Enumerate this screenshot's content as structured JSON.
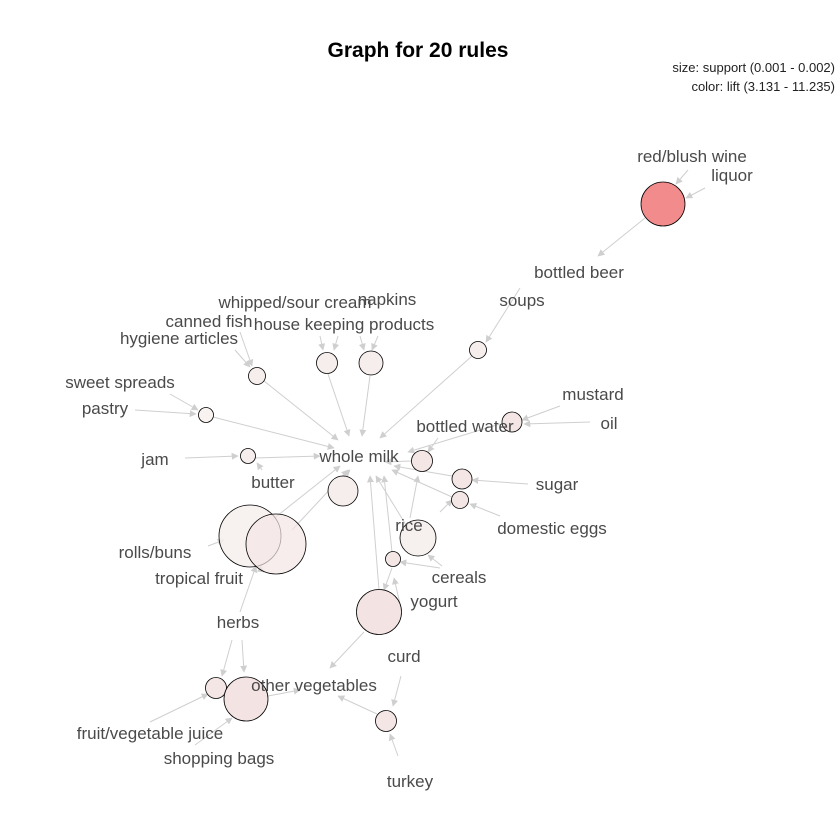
{
  "title": "Graph for 20 rules",
  "legend": {
    "size": "size: support (0.001 - 0.002)",
    "color": "color: lift (3.131 - 11.235)"
  },
  "colors": {
    "edge": "#cfcfcf",
    "rule_low": "#f5eceb",
    "rule_high": "#f28b8b",
    "label": "#4a4a4a"
  },
  "items": {
    "red_blush_wine": "red/blush wine",
    "liquor": "liquor",
    "bottled_beer": "bottled beer",
    "soups": "soups",
    "whipped_sour_cream": "whipped/sour cream",
    "napkins": "napkins",
    "canned_fish": "canned fish",
    "house_keeping_products": "house keeping products",
    "hygiene_articles": "hygiene articles",
    "sweet_spreads": "sweet spreads",
    "pastry": "pastry",
    "mustard": "mustard",
    "oil": "oil",
    "bottled_water": "bottled water",
    "jam": "jam",
    "whole_milk": "whole milk",
    "butter": "butter",
    "sugar": "sugar",
    "rice": "rice",
    "domestic_eggs": "domestic eggs",
    "rolls_buns": "rolls/buns",
    "tropical_fruit": "tropical fruit",
    "cereals": "cereals",
    "yogurt": "yogurt",
    "herbs": "herbs",
    "curd": "curd",
    "other_vegetables": "other vegetables",
    "fruit_vegetable_juice": "fruit/vegetable juice",
    "shopping_bags": "shopping bags",
    "turkey": "turkey"
  }
}
